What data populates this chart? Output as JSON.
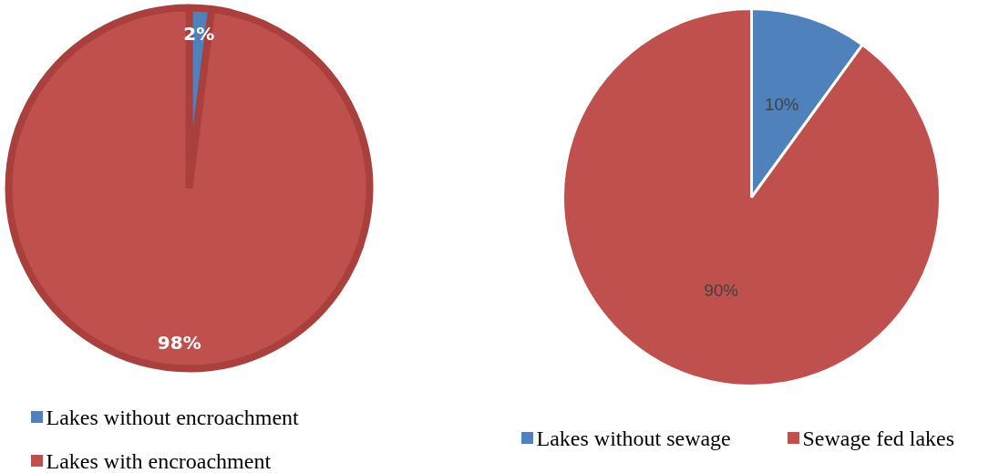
{
  "chart_data": [
    {
      "type": "pie",
      "categories": [
        "Lakes without encroachment",
        "Lakes with encroachment"
      ],
      "values": [
        2,
        98
      ],
      "value_labels": [
        "2%",
        "98%"
      ],
      "colors": [
        "#4f81bd",
        "#c0504d"
      ],
      "legend": "bottom"
    },
    {
      "type": "pie",
      "categories": [
        "Lakes without sewage",
        "Sewage fed lakes"
      ],
      "values": [
        10,
        90
      ],
      "value_labels": [
        "10%",
        "90%"
      ],
      "colors": [
        "#4f81bd",
        "#c0504d"
      ],
      "legend": "bottom"
    }
  ]
}
